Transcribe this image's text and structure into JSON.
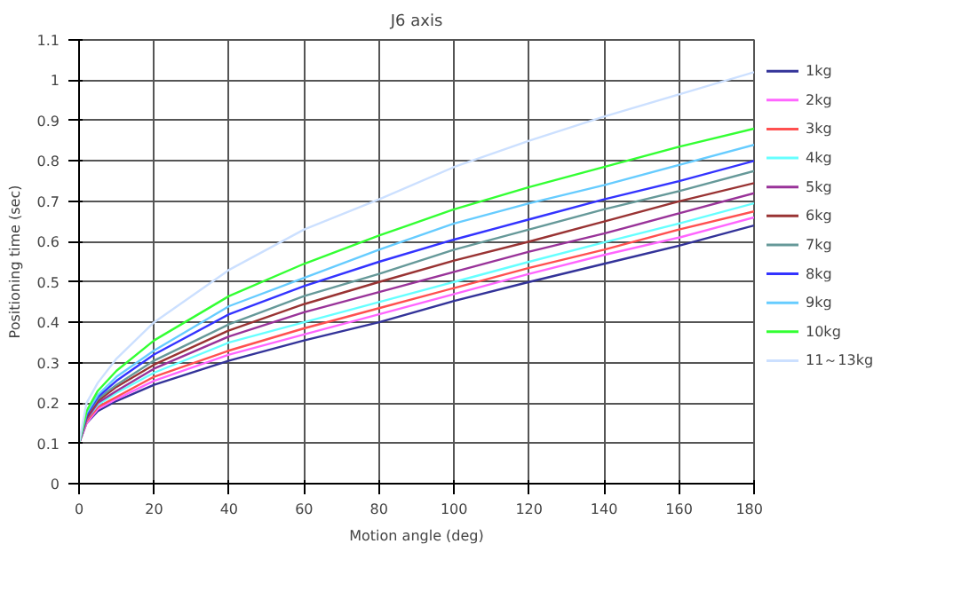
{
  "chart_data": {
    "type": "line",
    "subtitle": "J6 axis",
    "xlabel": "Motion angle (deg)",
    "ylabel": "Positioning time (sec)",
    "x": [
      0,
      2,
      5,
      10,
      20,
      40,
      60,
      80,
      100,
      120,
      140,
      160,
      180
    ],
    "xlim": [
      0,
      180
    ],
    "xticks": [
      0,
      20,
      40,
      60,
      80,
      100,
      120,
      140,
      160,
      180
    ],
    "ylim": [
      0,
      1.1
    ],
    "yticks": [
      0,
      0.1,
      0.2,
      0.3,
      0.4,
      0.5,
      0.6,
      0.7,
      0.8,
      0.9,
      1,
      1.1
    ],
    "grid": true,
    "legend": "right",
    "marker": "none",
    "line_style": "solid",
    "series": [
      {
        "name": "1kg",
        "color": "#333399",
        "values": [
          0.1,
          0.15,
          0.18,
          0.205,
          0.245,
          0.305,
          0.355,
          0.4,
          0.453,
          0.5,
          0.545,
          0.59,
          0.64
        ]
      },
      {
        "name": "2kg",
        "color": "#ff66ff",
        "values": [
          0.1,
          0.15,
          0.185,
          0.21,
          0.255,
          0.32,
          0.37,
          0.42,
          0.47,
          0.52,
          0.567,
          0.61,
          0.66
        ]
      },
      {
        "name": "3kg",
        "color": "#ff5050",
        "values": [
          0.1,
          0.155,
          0.19,
          0.215,
          0.265,
          0.33,
          0.385,
          0.435,
          0.485,
          0.535,
          0.58,
          0.63,
          0.675
        ]
      },
      {
        "name": "4kg",
        "color": "#66ffff",
        "values": [
          0.1,
          0.16,
          0.195,
          0.225,
          0.275,
          0.35,
          0.4,
          0.45,
          0.5,
          0.55,
          0.598,
          0.645,
          0.695
        ]
      },
      {
        "name": "5kg",
        "color": "#993399",
        "values": [
          0.1,
          0.16,
          0.2,
          0.23,
          0.285,
          0.365,
          0.425,
          0.475,
          0.525,
          0.575,
          0.62,
          0.67,
          0.72
        ]
      },
      {
        "name": "6kg",
        "color": "#993333",
        "values": [
          0.1,
          0.165,
          0.205,
          0.24,
          0.295,
          0.38,
          0.445,
          0.5,
          0.553,
          0.6,
          0.65,
          0.7,
          0.745
        ]
      },
      {
        "name": "7kg",
        "color": "#669999",
        "values": [
          0.1,
          0.17,
          0.21,
          0.245,
          0.305,
          0.395,
          0.465,
          0.52,
          0.58,
          0.63,
          0.68,
          0.725,
          0.775
        ]
      },
      {
        "name": "8kg",
        "color": "#3333ff",
        "values": [
          0.1,
          0.17,
          0.215,
          0.255,
          0.32,
          0.42,
          0.49,
          0.55,
          0.605,
          0.655,
          0.705,
          0.75,
          0.8
        ]
      },
      {
        "name": "9kg",
        "color": "#66ccff",
        "values": [
          0.1,
          0.175,
          0.22,
          0.265,
          0.33,
          0.44,
          0.51,
          0.58,
          0.645,
          0.695,
          0.74,
          0.79,
          0.84
        ]
      },
      {
        "name": "10kg",
        "color": "#33ff33",
        "values": [
          0.1,
          0.18,
          0.23,
          0.28,
          0.355,
          0.465,
          0.545,
          0.615,
          0.68,
          0.735,
          0.785,
          0.835,
          0.88
        ]
      },
      {
        "name": "11～13kg",
        "color": "#cce0ff",
        "values": [
          0.1,
          0.2,
          0.25,
          0.31,
          0.4,
          0.53,
          0.63,
          0.705,
          0.785,
          0.85,
          0.91,
          0.965,
          1.02
        ]
      }
    ]
  }
}
